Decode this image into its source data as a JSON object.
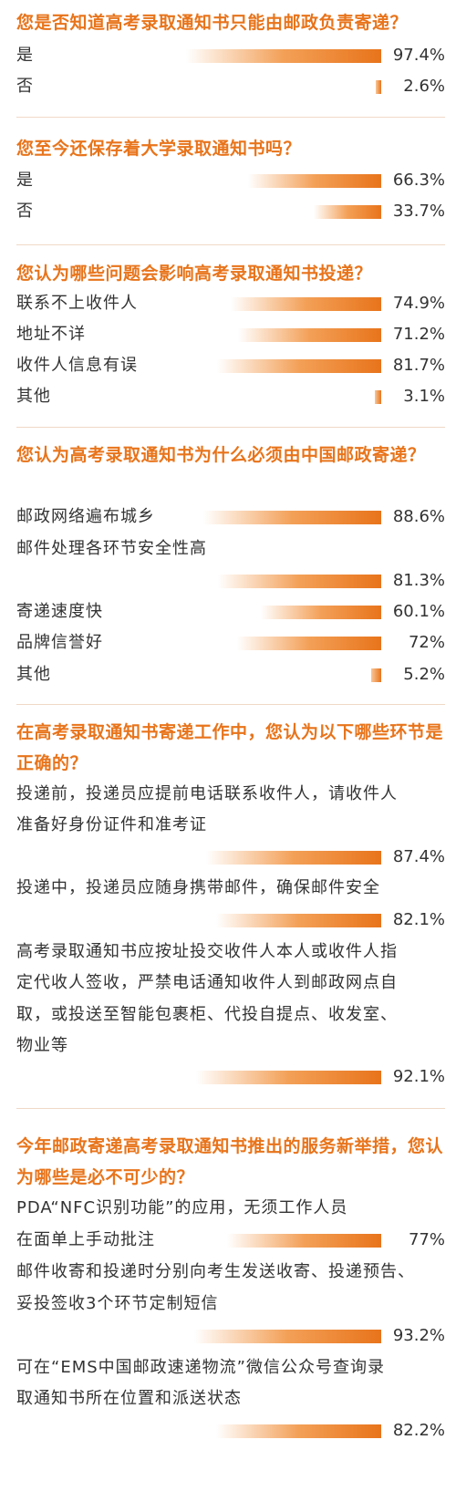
{
  "chart_data": [
    {
      "type": "bar",
      "title": "您是否知道高考录取通知书只能由邮政负责寄递？",
      "categories": [
        "是",
        "否"
      ],
      "values": [
        97.4,
        2.6
      ],
      "value_labels": [
        "97.4%",
        "2.6%"
      ]
    },
    {
      "type": "bar",
      "title": "您至今还保存着大学录取通知书吗？",
      "categories": [
        "是",
        "否"
      ],
      "values": [
        66.3,
        33.7
      ],
      "value_labels": [
        "66.3%",
        "33.7%"
      ]
    },
    {
      "type": "bar",
      "title": "您认为哪些问题会影响高考录取通知书投递？",
      "categories": [
        "联系不上收件人",
        "地址不详",
        "收件人信息有误",
        "其他"
      ],
      "values": [
        74.9,
        71.2,
        81.7,
        3.1
      ],
      "value_labels": [
        "74.9%",
        "71.2%",
        "81.7%",
        "3.1%"
      ]
    },
    {
      "type": "bar",
      "title": "您认为高考录取通知书为什么必须由中国邮政寄递？",
      "categories": [
        "邮政网络遍布城乡",
        "邮件处理各环节安全性高",
        "寄递速度快",
        "品牌信誉好",
        "其他"
      ],
      "values": [
        88.6,
        81.3,
        60.1,
        72,
        5.2
      ],
      "value_labels": [
        "88.6%",
        "81.3%",
        "60.1%",
        "72%",
        "5.2%"
      ]
    },
    {
      "type": "bar",
      "title": "在高考录取通知书寄递工作中，您认为以下哪些环节是正确的？",
      "categories": [
        "投递前，投递员应提前电话联系收件人，请收件人准备好身份证件和准考证",
        "投递中，投递员应随身携带邮件，确保邮件安全",
        "高考录取通知书应按址投交收件人本人或收件人指定代收人签收，严禁电话通知收件人到邮政网点自取，或投送至智能包裹柜、代投自提点、收发室、物业等"
      ],
      "values": [
        87.4,
        82.1,
        92.1
      ],
      "value_labels": [
        "87.4%",
        "82.1%",
        "92.1%"
      ]
    },
    {
      "type": "bar",
      "title": "今年邮政寄递高考录取通知书推出的服务新举措，您认为哪些是必不可少的？",
      "categories": [
        "PDA“NFC识别功能”的应用，无须工作人员在面单上手动批注",
        "邮件收寄和投递时分别向考生发送收寄、投递预告、妥投签收3个环节定制短信",
        "可在“EMS中国邮政速递物流”微信公众号查询录取通知书所在位置和派送状态"
      ],
      "values": [
        77,
        93.2,
        82.2
      ],
      "value_labels": [
        "77%",
        "93.2%",
        "82.2%"
      ]
    }
  ]
}
